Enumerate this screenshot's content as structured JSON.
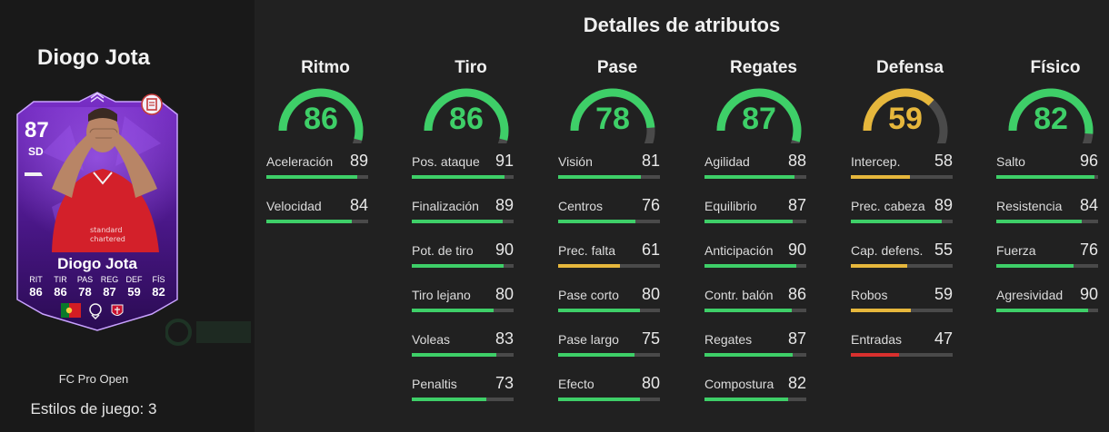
{
  "player": {
    "name": "Diogo Jota",
    "card_rating": "87",
    "card_position": "SD",
    "card_name": "Diogo Jota",
    "card_stats": [
      {
        "label": "RIT",
        "value": "86"
      },
      {
        "label": "TIR",
        "value": "86"
      },
      {
        "label": "PAS",
        "value": "78"
      },
      {
        "label": "REG",
        "value": "87"
      },
      {
        "label": "DEF",
        "value": "59"
      },
      {
        "label": "FÍS",
        "value": "82"
      }
    ],
    "promo": "FC Pro Open",
    "playstyles": "Estilos de juego: 3"
  },
  "title": "Detalles de atributos",
  "colors": {
    "high": "#3ecf68",
    "mid": "#e6b73c",
    "low": "#d9302e",
    "track": "#4a4a4a"
  },
  "categories": [
    {
      "title": "Ritmo",
      "value": "86",
      "level": 0.86,
      "tier": "high",
      "stats": [
        {
          "label": "Aceleración",
          "value": "89",
          "level": 0.89,
          "tier": "high"
        },
        {
          "label": "Velocidad",
          "value": "84",
          "level": 0.84,
          "tier": "high"
        }
      ]
    },
    {
      "title": "Tiro",
      "value": "86",
      "level": 0.86,
      "tier": "high",
      "stats": [
        {
          "label": "Pos. ataque",
          "value": "91",
          "level": 0.91,
          "tier": "high"
        },
        {
          "label": "Finalización",
          "value": "89",
          "level": 0.89,
          "tier": "high"
        },
        {
          "label": "Pot. de tiro",
          "value": "90",
          "level": 0.9,
          "tier": "high"
        },
        {
          "label": "Tiro lejano",
          "value": "80",
          "level": 0.8,
          "tier": "high"
        },
        {
          "label": "Voleas",
          "value": "83",
          "level": 0.83,
          "tier": "high"
        },
        {
          "label": "Penaltis",
          "value": "73",
          "level": 0.73,
          "tier": "high"
        }
      ]
    },
    {
      "title": "Pase",
      "value": "78",
      "level": 0.78,
      "tier": "high",
      "stats": [
        {
          "label": "Visión",
          "value": "81",
          "level": 0.81,
          "tier": "high"
        },
        {
          "label": "Centros",
          "value": "76",
          "level": 0.76,
          "tier": "high"
        },
        {
          "label": "Prec. falta",
          "value": "61",
          "level": 0.61,
          "tier": "mid"
        },
        {
          "label": "Pase corto",
          "value": "80",
          "level": 0.8,
          "tier": "high"
        },
        {
          "label": "Pase largo",
          "value": "75",
          "level": 0.75,
          "tier": "high"
        },
        {
          "label": "Efecto",
          "value": "80",
          "level": 0.8,
          "tier": "high"
        }
      ]
    },
    {
      "title": "Regates",
      "value": "87",
      "level": 0.87,
      "tier": "high",
      "stats": [
        {
          "label": "Agilidad",
          "value": "88",
          "level": 0.88,
          "tier": "high"
        },
        {
          "label": "Equilibrio",
          "value": "87",
          "level": 0.87,
          "tier": "high"
        },
        {
          "label": "Anticipación",
          "value": "90",
          "level": 0.9,
          "tier": "high"
        },
        {
          "label": "Contr. balón",
          "value": "86",
          "level": 0.86,
          "tier": "high"
        },
        {
          "label": "Regates",
          "value": "87",
          "level": 0.87,
          "tier": "high"
        },
        {
          "label": "Compostura",
          "value": "82",
          "level": 0.82,
          "tier": "high"
        }
      ]
    },
    {
      "title": "Defensa",
      "value": "59",
      "level": 0.59,
      "tier": "mid",
      "stats": [
        {
          "label": "Intercep.",
          "value": "58",
          "level": 0.58,
          "tier": "mid"
        },
        {
          "label": "Prec. cabeza",
          "value": "89",
          "level": 0.89,
          "tier": "high"
        },
        {
          "label": "Cap. defens.",
          "value": "55",
          "level": 0.55,
          "tier": "mid"
        },
        {
          "label": "Robos",
          "value": "59",
          "level": 0.59,
          "tier": "mid"
        },
        {
          "label": "Entradas",
          "value": "47",
          "level": 0.47,
          "tier": "low"
        }
      ]
    },
    {
      "title": "Físico",
      "value": "82",
      "level": 0.82,
      "tier": "high",
      "stats": [
        {
          "label": "Salto",
          "value": "96",
          "level": 0.96,
          "tier": "high"
        },
        {
          "label": "Resistencia",
          "value": "84",
          "level": 0.84,
          "tier": "high"
        },
        {
          "label": "Fuerza",
          "value": "76",
          "level": 0.76,
          "tier": "high"
        },
        {
          "label": "Agresividad",
          "value": "90",
          "level": 0.9,
          "tier": "high"
        }
      ]
    }
  ]
}
